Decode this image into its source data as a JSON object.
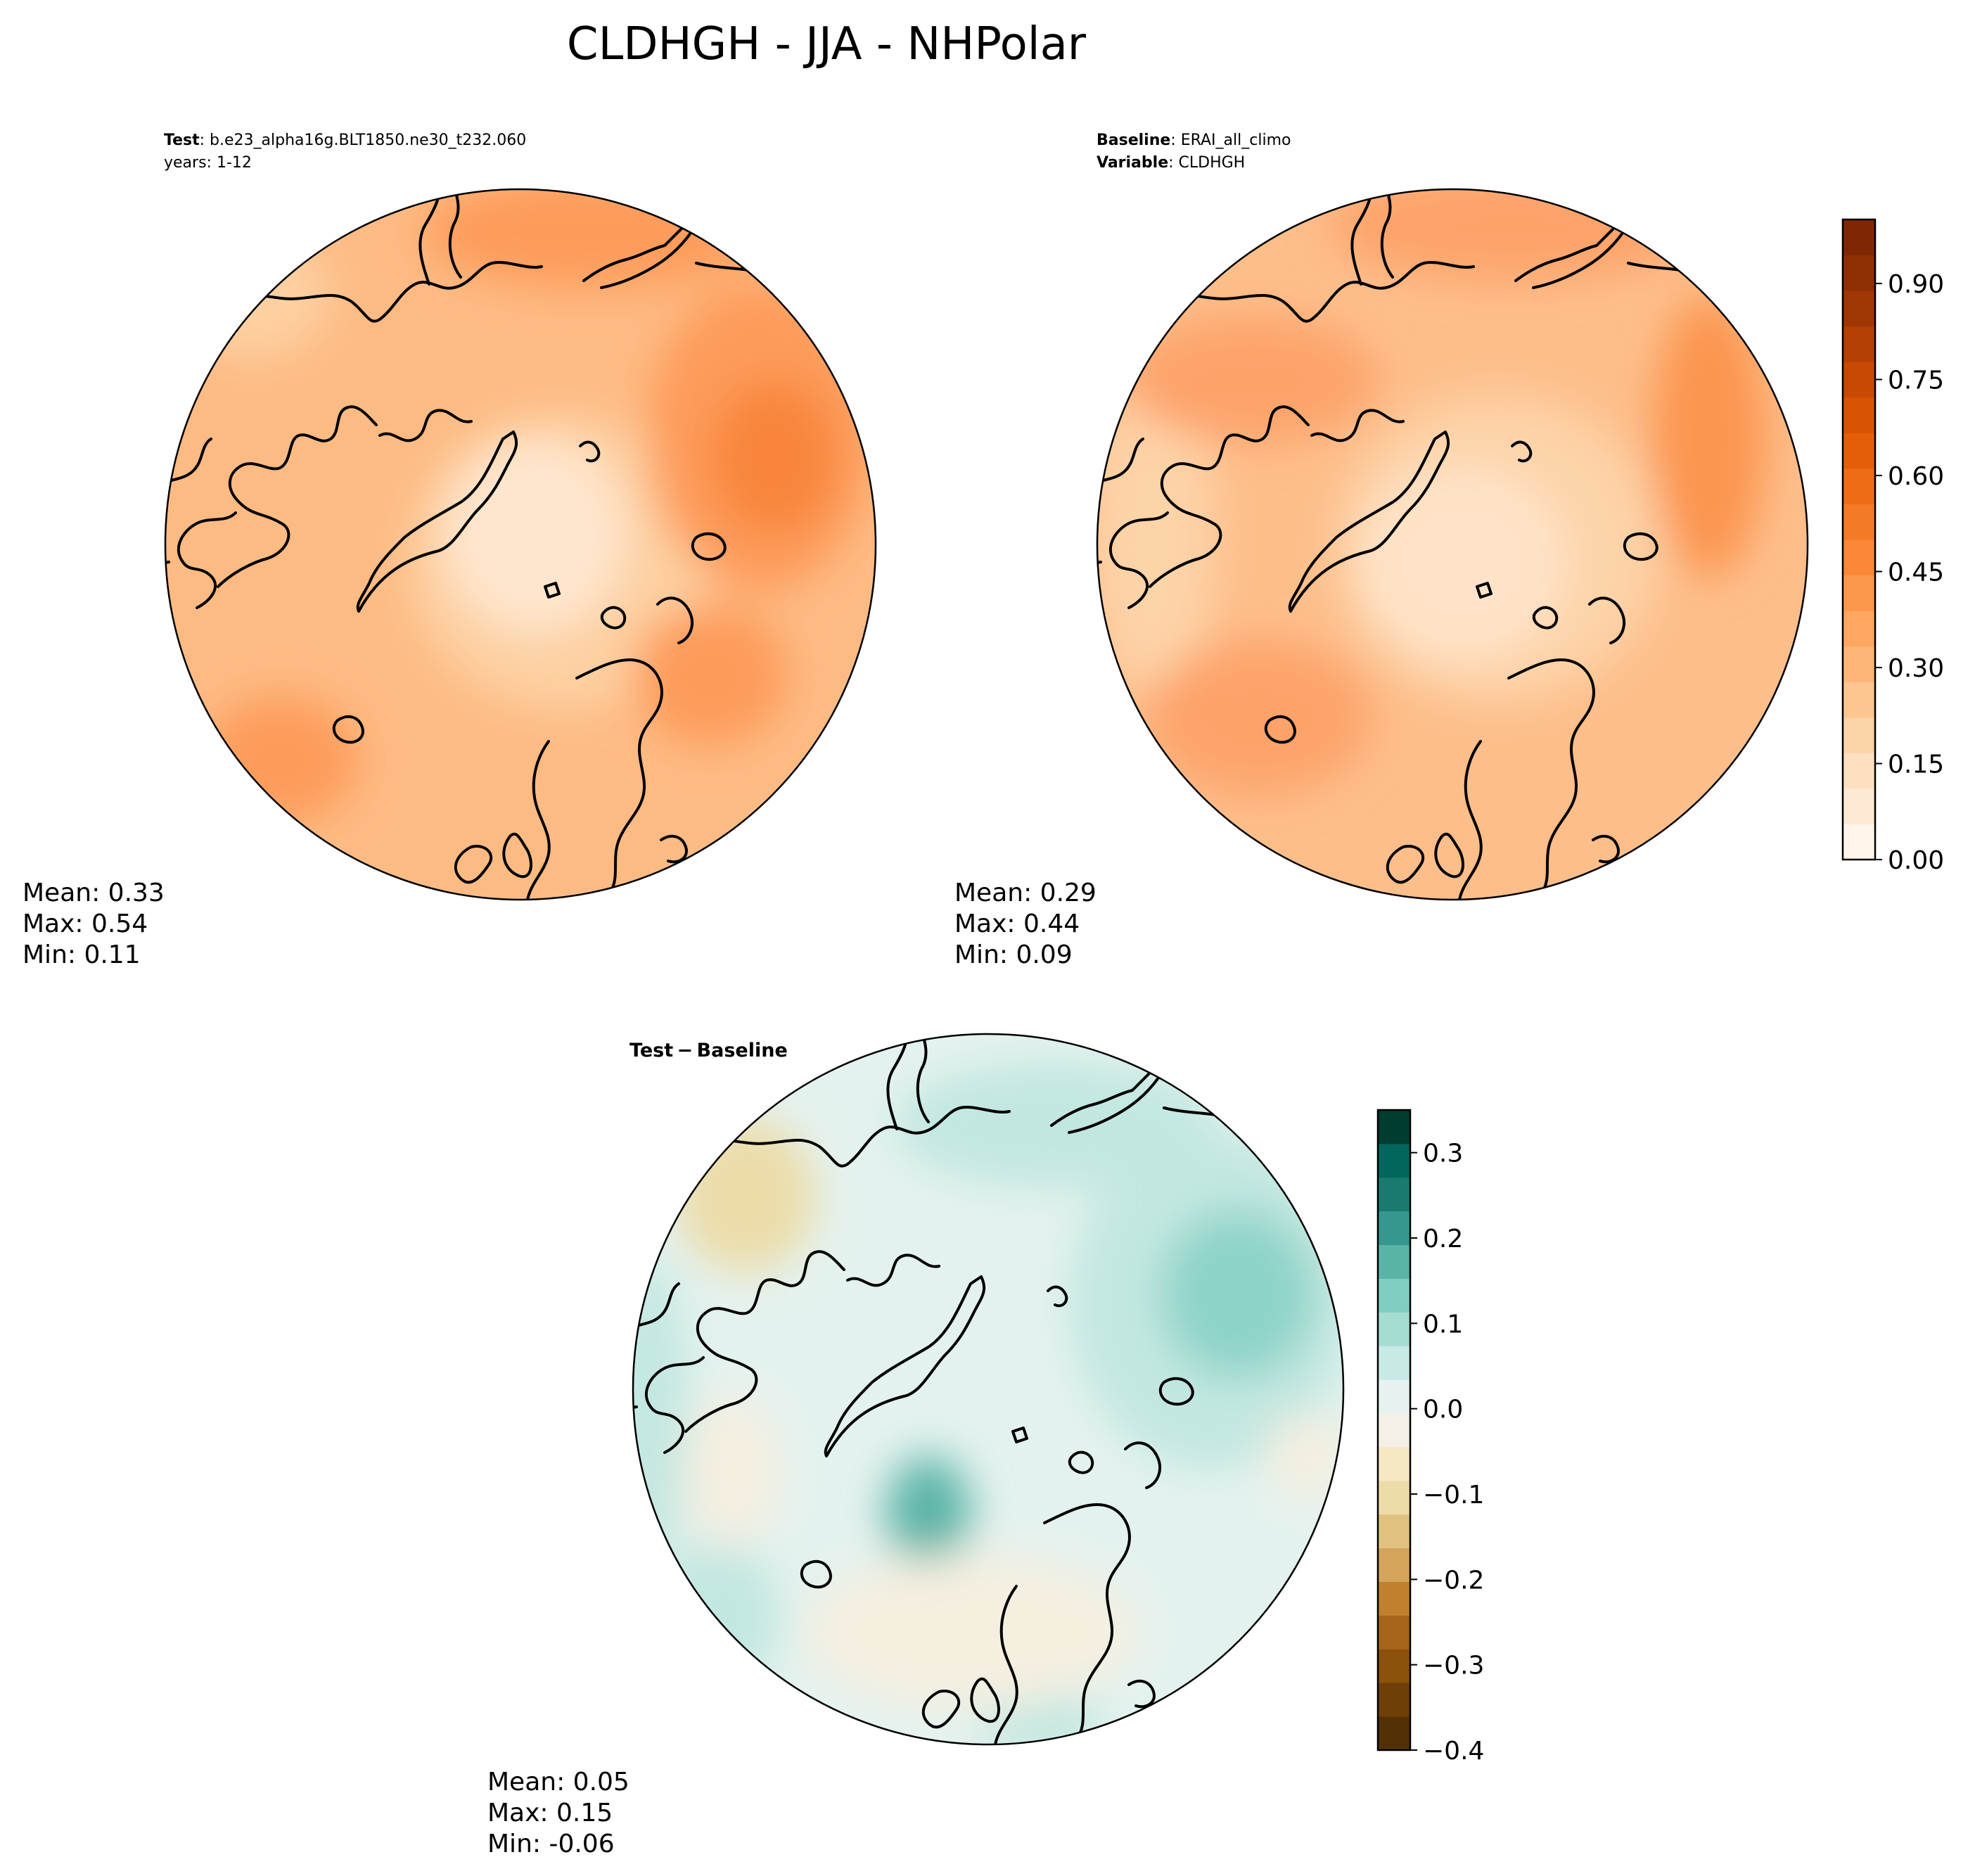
{
  "figure": {
    "title": "CLDHGH - JJA - NHPolar"
  },
  "panels": {
    "test": {
      "label_key": "Test",
      "label_value": "b.e23_alpha16g.BLT1850.ne30_t232.060",
      "line2": "years: 1-12",
      "stats": {
        "mean": "Mean:  0.33",
        "max": "Max:  0.54",
        "min": "Min:  0.11"
      },
      "palette": {
        "base": "#fdbb84",
        "light": "#fdd0a2",
        "lighter": "#fee6ce",
        "dark": "#fd9b5a",
        "darker": "#f8853a"
      }
    },
    "baseline": {
      "label_key": "Baseline",
      "label_value": "ERAI_all_climo",
      "line2_key": "Variable",
      "line2_value": "CLDHGH",
      "stats": {
        "mean": "Mean:  0.29",
        "max": "Max:  0.44",
        "min": "Min:  0.09"
      },
      "palette": {
        "base": "#fdbe8a",
        "light": "#fdd3a8",
        "lighter": "#fee3c8",
        "dark": "#fda36a",
        "darker": "#fb9550"
      }
    },
    "diff": {
      "label": "Test − Baseline",
      "stats": {
        "mean": "Mean:  0.05",
        "max": "Max:  0.15",
        "min": "Min: -0.06"
      },
      "palette": {
        "base": "#e4f2ef",
        "teal": "#c2e7e1",
        "teal2": "#8dd3c7",
        "teal3": "#5ab4a6",
        "teal4": "#2e8f82",
        "tan": "#f5efe0",
        "tan2": "#ecdca8"
      }
    }
  },
  "colorbars": {
    "cloud": {
      "ticks": [
        "0.00",
        "0.15",
        "0.30",
        "0.45",
        "0.60",
        "0.75",
        "0.90"
      ],
      "tick_values": [
        0.0,
        0.15,
        0.3,
        0.45,
        0.6,
        0.75,
        0.9
      ],
      "range": [
        0.0,
        1.0
      ],
      "colors": [
        "#fff5eb",
        "#fee9d4",
        "#fee0c1",
        "#fdd3a8",
        "#fdc590",
        "#fdb677",
        "#fda761",
        "#fd974c",
        "#fa8838",
        "#f57a27",
        "#ee6c16",
        "#e45e0a",
        "#d85304",
        "#c84903",
        "#b54003",
        "#a03603",
        "#8e2f03",
        "#7f2704"
      ]
    },
    "diff": {
      "ticks": [
        "0.3",
        "0.2",
        "0.1",
        "0.0",
        "−0.1",
        "−0.2",
        "−0.3",
        "−0.4"
      ],
      "tick_values": [
        0.3,
        0.2,
        0.1,
        0.0,
        -0.1,
        -0.2,
        -0.3,
        -0.4
      ],
      "range": [
        -0.4,
        0.35
      ],
      "colors": [
        "#543005",
        "#6f3f08",
        "#8c510a",
        "#a6651a",
        "#bf812d",
        "#d3a45a",
        "#dfc27d",
        "#ecdca8",
        "#f6e8c3",
        "#f5f0e6",
        "#e6f2ef",
        "#c7eae5",
        "#a6ddd3",
        "#80cdc1",
        "#5ab4a6",
        "#35978f",
        "#1a7a6f",
        "#01665e",
        "#003c30"
      ]
    }
  }
}
